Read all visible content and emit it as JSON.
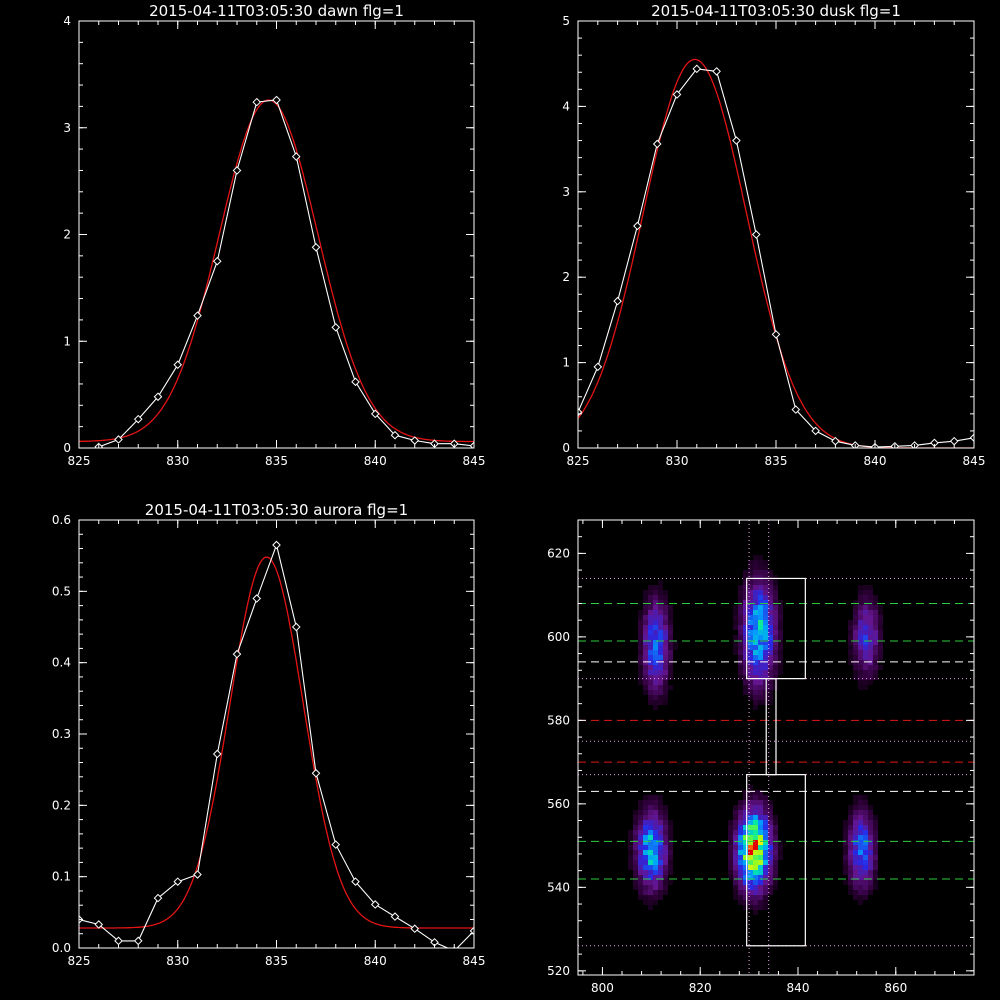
{
  "colors": {
    "background": "#000000",
    "axes": "#ffffff",
    "data_line": "#ffffff",
    "fit_line": "#e41414",
    "dash_green": "#2ecc40",
    "dash_red": "#e01818",
    "dash_white": "#ffffff",
    "dotted_lines": "#e6a6e6"
  },
  "chart_data": [
    {
      "type": "line",
      "title": "2015-04-11T03:05:30 dawn flg=1",
      "xlabel": "",
      "ylabel": "",
      "xlim": [
        825,
        845
      ],
      "ylim": [
        0,
        4
      ],
      "xticks": [
        "825",
        "830",
        "835",
        "840",
        "845"
      ],
      "yticks": [
        "0",
        "1",
        "2",
        "3",
        "4"
      ],
      "series": [
        {
          "kind": "data",
          "marker": "diamond",
          "x": [
            826,
            827,
            828,
            829,
            830,
            831,
            832,
            833,
            834,
            835,
            836,
            837,
            838,
            839,
            840,
            841,
            842,
            843,
            844,
            845
          ],
          "y": [
            0.01,
            0.08,
            0.27,
            0.48,
            0.78,
            1.24,
            1.75,
            2.6,
            3.24,
            3.26,
            2.73,
            1.88,
            1.13,
            0.62,
            0.32,
            0.12,
            0.07,
            0.04,
            0.04,
            0.02
          ]
        },
        {
          "kind": "fit",
          "amp": 3.2,
          "center": 834.6,
          "sigma": 2.5,
          "base": 0.06
        }
      ]
    },
    {
      "type": "line",
      "title": "2015-04-11T03:05:30 dusk flg=1",
      "xlabel": "",
      "ylabel": "",
      "xlim": [
        825,
        845
      ],
      "ylim": [
        0,
        5
      ],
      "xticks": [
        "825",
        "830",
        "835",
        "840",
        "845"
      ],
      "yticks": [
        "0",
        "1",
        "2",
        "3",
        "4",
        "5"
      ],
      "series": [
        {
          "kind": "data",
          "marker": "diamond",
          "x": [
            825,
            826,
            827,
            828,
            829,
            830,
            831,
            832,
            833,
            834,
            835,
            836,
            837,
            838,
            839,
            840,
            841,
            842,
            843,
            844,
            845
          ],
          "y": [
            0.42,
            0.95,
            1.72,
            2.6,
            3.56,
            4.14,
            4.44,
            4.41,
            3.6,
            2.5,
            1.33,
            0.45,
            0.2,
            0.08,
            0.03,
            0.01,
            0.02,
            0.03,
            0.06,
            0.08,
            0.12
          ]
        },
        {
          "kind": "fit",
          "amp": 4.55,
          "center": 830.9,
          "sigma": 2.6,
          "base": 0.0
        }
      ]
    },
    {
      "type": "line",
      "title": "2015-04-11T03:05:30 aurora flg=1",
      "xlabel": "",
      "ylabel": "",
      "xlim": [
        825,
        845
      ],
      "ylim": [
        0,
        0.6
      ],
      "xticks": [
        "825",
        "830",
        "835",
        "840",
        "845"
      ],
      "yticks": [
        "0.0",
        "0.1",
        "0.2",
        "0.3",
        "0.4",
        "0.5",
        "0.6"
      ],
      "series": [
        {
          "kind": "data",
          "marker": "diamond",
          "x": [
            825,
            826,
            827,
            828,
            829,
            830,
            831,
            832,
            833,
            834,
            835,
            836,
            837,
            838,
            839,
            840,
            841,
            842,
            843,
            844,
            845
          ],
          "y": [
            0.04,
            0.033,
            0.01,
            0.01,
            0.07,
            0.093,
            0.103,
            0.272,
            0.412,
            0.49,
            0.565,
            0.45,
            0.245,
            0.145,
            0.093,
            0.061,
            0.044,
            0.027,
            0.008,
            -0.004,
            0.024
          ]
        },
        {
          "kind": "fit",
          "amp": 0.52,
          "center": 834.5,
          "sigma": 1.85,
          "base": 0.028
        }
      ]
    },
    {
      "type": "heatmap",
      "title": "",
      "xlabel": "",
      "ylabel": "",
      "xlim": [
        795,
        876
      ],
      "ylim": [
        519,
        628
      ],
      "xticks": [
        "800",
        "820",
        "840",
        "860"
      ],
      "yticks": [
        "520",
        "540",
        "560",
        "580",
        "600",
        "620"
      ],
      "blobs": [
        {
          "x": 811,
          "y": 598,
          "sx": 1.8,
          "sy": 7,
          "peak": 0.42
        },
        {
          "x": 810,
          "y": 549,
          "sx": 2.0,
          "sy": 6,
          "peak": 0.55
        },
        {
          "x": 832,
          "y": 601,
          "sx": 2.2,
          "sy": 8,
          "peak": 0.55
        },
        {
          "x": 831,
          "y": 549,
          "sx": 2.2,
          "sy": 6,
          "peak": 0.95
        },
        {
          "x": 854,
          "y": 600,
          "sx": 1.8,
          "sy": 6,
          "peak": 0.32
        },
        {
          "x": 853,
          "y": 549,
          "sx": 1.8,
          "sy": 6,
          "peak": 0.42
        }
      ],
      "hlines": [
        {
          "style": "dotted",
          "color": "dotted_lines",
          "y": [
            614,
            590,
            575,
            567,
            526
          ]
        },
        {
          "style": "dashed",
          "color": "dash_green",
          "y": [
            608,
            599,
            551,
            542
          ]
        },
        {
          "style": "dashed",
          "color": "dash_white",
          "y": [
            594,
            563
          ]
        },
        {
          "style": "dashed",
          "color": "dash_red",
          "y": [
            580,
            570
          ]
        }
      ],
      "vlines": [
        {
          "style": "dotted",
          "color": "dotted_lines",
          "x": [
            830,
            834
          ]
        }
      ],
      "boxes": [
        {
          "x": [
            829.5,
            841.5
          ],
          "y": [
            590,
            614
          ]
        },
        {
          "x": [
            829.5,
            841.5
          ],
          "y": [
            526,
            567
          ]
        },
        {
          "x": [
            833.5,
            835.5
          ],
          "y": [
            567,
            590
          ]
        }
      ]
    }
  ]
}
